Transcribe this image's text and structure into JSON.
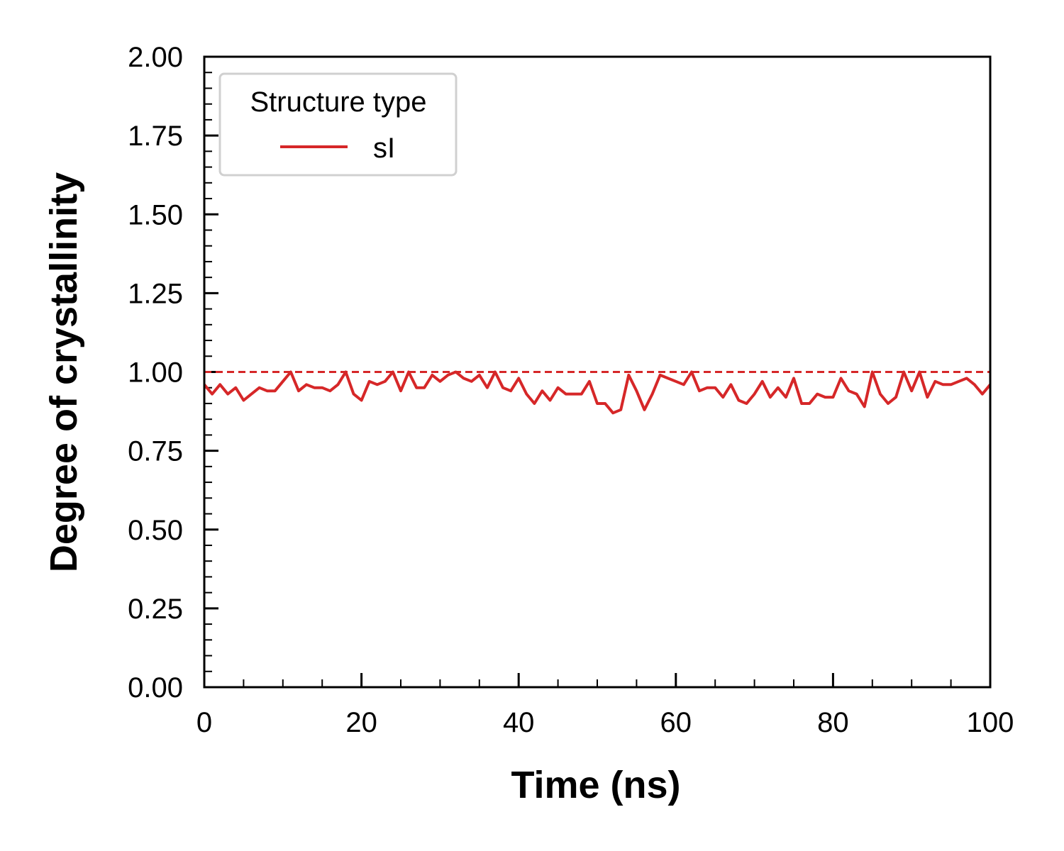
{
  "chart_data": {
    "type": "line",
    "xlabel": "Time (ns)",
    "ylabel": "Degree of crystallinity",
    "xlim": [
      0,
      100
    ],
    "ylim": [
      0,
      2
    ],
    "x_ticks": [
      "0",
      "20",
      "40",
      "60",
      "80",
      "100"
    ],
    "y_ticks": [
      "0.00",
      "0.25",
      "0.50",
      "0.75",
      "1.00",
      "1.25",
      "1.50",
      "1.75",
      "2.00"
    ],
    "reference_line": {
      "y": 1.0,
      "style": "dashed",
      "color": "#d62728"
    },
    "legend": {
      "title": "Structure type",
      "placement": "top-left"
    },
    "grid": false,
    "series": [
      {
        "name": "sI",
        "color": "#d62728",
        "x": [
          0,
          1,
          2,
          3,
          4,
          5,
          6,
          7,
          8,
          9,
          10,
          11,
          12,
          13,
          14,
          15,
          16,
          17,
          18,
          19,
          20,
          21,
          22,
          23,
          24,
          25,
          26,
          27,
          28,
          29,
          30,
          31,
          32,
          33,
          34,
          35,
          36,
          37,
          38,
          39,
          40,
          41,
          42,
          43,
          44,
          45,
          46,
          47,
          48,
          49,
          50,
          51,
          52,
          53,
          54,
          55,
          56,
          57,
          58,
          59,
          60,
          61,
          62,
          63,
          64,
          65,
          66,
          67,
          68,
          69,
          70,
          71,
          72,
          73,
          74,
          75,
          76,
          77,
          78,
          79,
          80,
          81,
          82,
          83,
          84,
          85,
          86,
          87,
          88,
          89,
          90,
          91,
          92,
          93,
          94,
          95,
          96,
          97,
          98,
          99,
          100
        ],
        "y": [
          0.96,
          0.93,
          0.96,
          0.93,
          0.95,
          0.91,
          0.93,
          0.95,
          0.94,
          0.94,
          0.97,
          1.0,
          0.94,
          0.96,
          0.95,
          0.95,
          0.94,
          0.96,
          1.0,
          0.93,
          0.91,
          0.97,
          0.96,
          0.97,
          1.0,
          0.94,
          1.0,
          0.95,
          0.95,
          0.99,
          0.97,
          0.99,
          1.0,
          0.98,
          0.97,
          0.99,
          0.95,
          1.0,
          0.95,
          0.94,
          0.98,
          0.93,
          0.9,
          0.94,
          0.91,
          0.95,
          0.93,
          0.93,
          0.93,
          0.97,
          0.9,
          0.9,
          0.87,
          0.88,
          0.99,
          0.94,
          0.88,
          0.93,
          0.99,
          0.98,
          0.97,
          0.96,
          1.0,
          0.94,
          0.95,
          0.95,
          0.92,
          0.96,
          0.91,
          0.9,
          0.93,
          0.97,
          0.92,
          0.95,
          0.92,
          0.98,
          0.9,
          0.9,
          0.93,
          0.92,
          0.92,
          0.98,
          0.94,
          0.93,
          0.89,
          1.0,
          0.93,
          0.9,
          0.92,
          1.0,
          0.94,
          1.0,
          0.92,
          0.97,
          0.96,
          0.96,
          0.97,
          0.98,
          0.96,
          0.93,
          0.96
        ]
      }
    ]
  }
}
